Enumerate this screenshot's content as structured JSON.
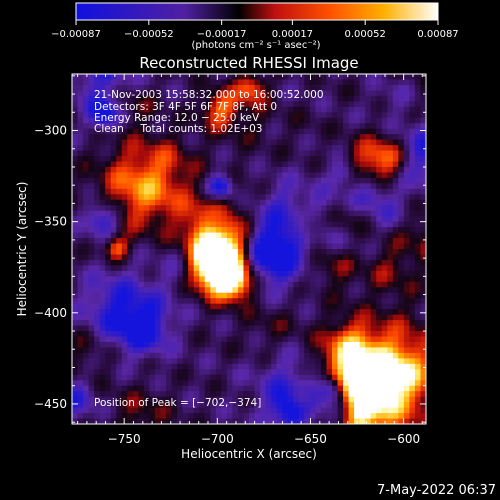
{
  "chart_data": {
    "type": "heatmap",
    "title": "Reconstructed RHESSI Image",
    "xlabel": "Heliocentric X (arcsec)",
    "ylabel": "Heliocentric Y (arcsec)",
    "xlim": [
      -778,
      -588
    ],
    "ylim": [
      -461,
      -269
    ],
    "xticks": [
      -750,
      -700,
      -650,
      -600
    ],
    "xtick_labels": [
      "−750",
      "−700",
      "−650",
      "−600"
    ],
    "yticks": [
      -300,
      -350,
      -400,
      -450
    ],
    "ytick_labels": [
      "−300",
      "−350",
      "−400",
      "−450"
    ],
    "colorbar": {
      "range": [
        -0.00087,
        0.00087
      ],
      "ticks": [
        -0.00087,
        -0.00052,
        -0.00017,
        0.00017,
        0.00052,
        0.00087
      ],
      "tick_labels": [
        "−0.00087",
        "−0.00052",
        "−0.00017",
        "0.00017",
        "0.00052",
        "0.00087"
      ],
      "unit_label": "(photons cm⁻² s⁻¹ asec⁻²)",
      "colors": [
        "#1010e0",
        "#000000",
        "#e01010",
        "#ff8800",
        "#ffff60",
        "#ffffff"
      ]
    },
    "annotations": [
      "21-Nov-2003 15:58:32.000 to 16:00:52.000",
      "Detectors: 3F 4F 5F 6F 7F 8F, Att 0",
      "Energy Range: 12.0 − 25.0 keV",
      "Clean     Total counts: 1.02E+03"
    ],
    "peak_label": "Position of Peak = [−702,−374]",
    "peak": {
      "x": -702,
      "y": -374
    },
    "grid": false
  },
  "footer": {
    "date": "7-May-2022 06:37"
  }
}
